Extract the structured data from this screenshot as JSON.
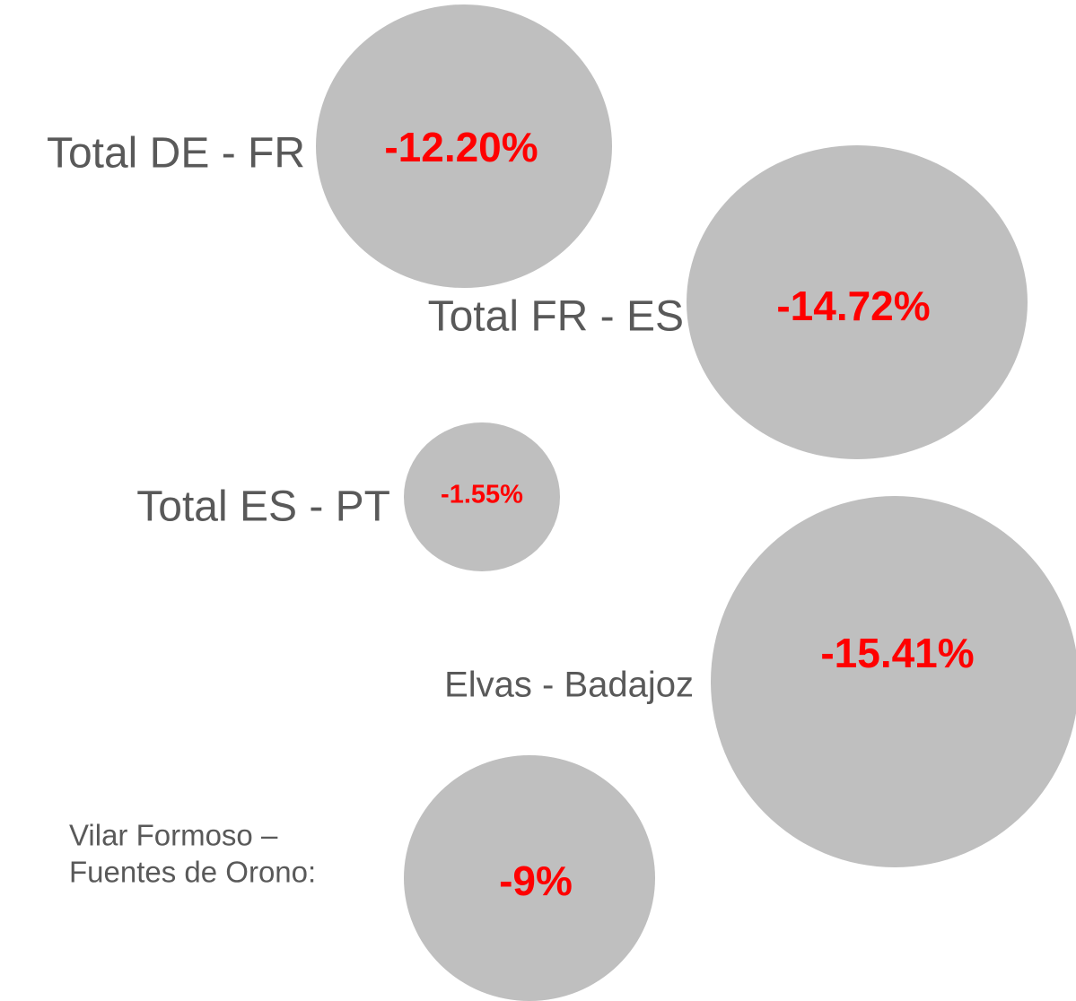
{
  "items": [
    {
      "label": "Total DE - FR",
      "value": "-12.20%"
    },
    {
      "label": "Total FR - ES",
      "value": "-14.72%"
    },
    {
      "label": "Total ES - PT",
      "value": "-1.55%"
    },
    {
      "label": "Elvas - Badajoz",
      "value": "-15.41%"
    },
    {
      "label_lines": [
        "Vilar Formoso –",
        "Fuentes de Orono:"
      ],
      "value": "-9%"
    }
  ]
}
